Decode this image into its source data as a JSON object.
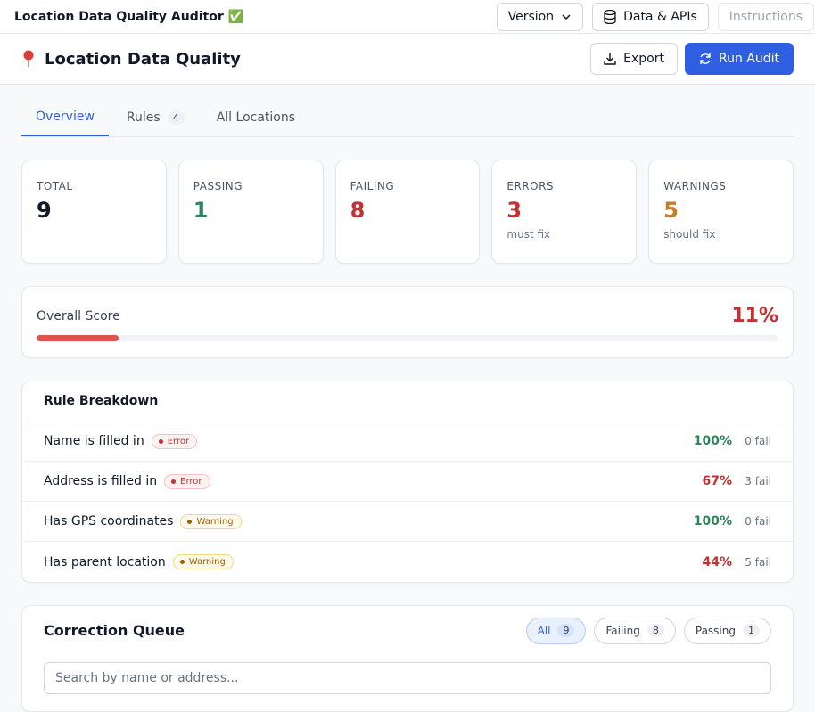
{
  "topbar": {
    "title": "Location Data Quality Auditor ✅",
    "buttons": [
      "Version",
      "Data & APIs",
      "Instructions"
    ]
  },
  "header": {
    "title": "Location Data Quality",
    "actions": [
      "Export",
      "Run Audit"
    ]
  },
  "tabs": [
    {
      "label": "Overview"
    },
    {
      "label": "Rules",
      "count": 4
    },
    {
      "label": "All Locations"
    }
  ],
  "stats": [
    {
      "label": "TOTAL",
      "value": 9,
      "color": "#111827"
    },
    {
      "label": "PASSING",
      "value": 1,
      "color": "#2f855a"
    },
    {
      "label": "FAILING",
      "value": 8,
      "color": "#c53030"
    },
    {
      "label": "ERRORS",
      "value": 3,
      "note": "must fix",
      "color": "#c53030"
    },
    {
      "label": "WARNINGS",
      "value": 5,
      "note": "should fix",
      "color": "#c27c2c"
    }
  ],
  "score": {
    "label": "Overall Score",
    "value": 11,
    "display": "11%",
    "color": "#e05252"
  },
  "rules": {
    "title": "Rule Breakdown",
    "rows": [
      {
        "name": "Name is filled in",
        "severity": "Error",
        "pass_rate": "100%",
        "fail": "0 fail",
        "color": "#2f855a"
      },
      {
        "name": "Address is filled in",
        "severity": "Error",
        "pass_rate": "67%",
        "fail": "3 fail",
        "color": "#c53030"
      },
      {
        "name": "Has GPS coordinates",
        "severity": "Warning",
        "pass_rate": "100%",
        "fail": "0 fail",
        "color": "#2f855a"
      },
      {
        "name": "Has parent location",
        "severity": "Warning",
        "pass_rate": "44%",
        "fail": "5 fail",
        "color": "#c53030"
      }
    ]
  },
  "queue": {
    "title": "Correction Queue",
    "filters": [
      {
        "label": "All",
        "count": 9
      },
      {
        "label": "Failing",
        "count": 8
      },
      {
        "label": "Passing",
        "count": 1
      }
    ],
    "search_placeholder": "Search by name or address..."
  }
}
